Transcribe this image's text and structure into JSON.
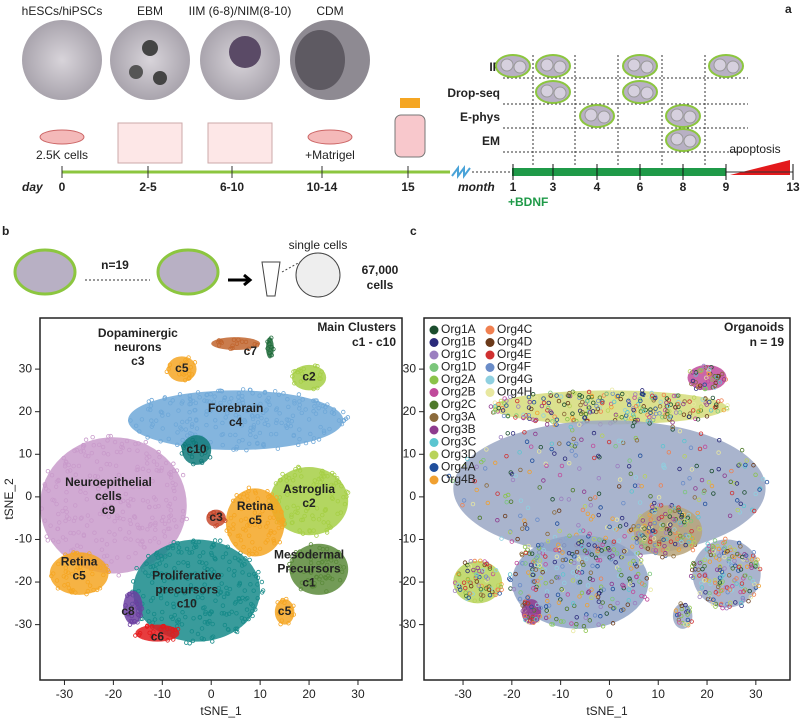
{
  "panel_a": {
    "label": "a",
    "stages": [
      {
        "name": "hESCs/hiPSCs",
        "note": "2.5K cells"
      },
      {
        "name": "EBM"
      },
      {
        "name": "IIM (6-8)/NIM(8-10)"
      },
      {
        "name": "CDM",
        "note": "+Matrigel"
      }
    ],
    "day_label": "day",
    "days": [
      "0",
      "2-5",
      "6-10",
      "10-14",
      "15"
    ],
    "month_label": "month",
    "months": [
      "1",
      "3",
      "4",
      "6",
      "8",
      "9",
      "13"
    ],
    "bdnf": "+BDNF",
    "apoptosis": "apoptosis",
    "assays": [
      {
        "name": "IF",
        "at": [
          0,
          1,
          3,
          5
        ]
      },
      {
        "name": "Drop-seq",
        "at": [
          1,
          3
        ]
      },
      {
        "name": "E-phys",
        "at": [
          2,
          4
        ]
      },
      {
        "name": "EM",
        "at": [
          4
        ]
      }
    ]
  },
  "panel_b": {
    "label": "b",
    "n": "n=19",
    "single_cells": "single cells",
    "cells": [
      "67,000",
      "cells"
    ]
  },
  "panel_c": {
    "label": "c"
  },
  "plots": [
    {
      "type": "scatter",
      "xlabel": "tSNE_1",
      "ylabel": "tSNE_2",
      "xlim": [
        -35,
        39
      ],
      "ylim": [
        -43,
        42
      ],
      "xticks": [
        -30,
        -20,
        -10,
        0,
        10,
        20,
        30
      ],
      "yticks": [
        -30,
        -20,
        -10,
        0,
        10,
        20,
        30
      ],
      "corner": [
        "Main Clusters",
        "c1 - c10"
      ],
      "blobs": [
        {
          "color": "#6fa8d8",
          "x": 5,
          "y": 18,
          "rx": 22,
          "ry": 7
        },
        {
          "color": "#c99bcb",
          "x": -20,
          "y": -2,
          "rx": 15,
          "ry": 16
        },
        {
          "color": "#168a89",
          "x": -3,
          "y": -22,
          "rx": 13,
          "ry": 12
        },
        {
          "color": "#a6cf45",
          "x": 20,
          "y": -1,
          "rx": 8,
          "ry": 8
        },
        {
          "color": "#f5a623",
          "x": 9,
          "y": -6,
          "rx": 6,
          "ry": 8
        },
        {
          "color": "#f5a623",
          "x": -27,
          "y": -18,
          "rx": 6,
          "ry": 5
        },
        {
          "color": "#5b8a3a",
          "x": 22,
          "y": -17,
          "rx": 6,
          "ry": 6
        },
        {
          "color": "#a6cf45",
          "x": 20,
          "y": 28,
          "rx": 3.5,
          "ry": 3
        },
        {
          "color": "#f5a623",
          "x": -6,
          "y": 30,
          "rx": 3,
          "ry": 3
        },
        {
          "color": "#1f6b3a",
          "x": 12,
          "y": 35,
          "rx": 0.8,
          "ry": 2.5
        },
        {
          "color": "#c1652e",
          "x": 5,
          "y": 36,
          "rx": 5,
          "ry": 1.5
        },
        {
          "color": "#117a7a",
          "x": -3,
          "y": 11,
          "rx": 3,
          "ry": 3.5
        },
        {
          "color": "#c84a2e",
          "x": 1,
          "y": -5,
          "rx": 2,
          "ry": 2
        },
        {
          "color": "#6b3fa0",
          "x": -16,
          "y": -26,
          "rx": 2,
          "ry": 4
        },
        {
          "color": "#e31a1c",
          "x": -11,
          "y": -32,
          "rx": 4.5,
          "ry": 2
        },
        {
          "color": "#f5a623",
          "x": 15,
          "y": -27,
          "rx": 2,
          "ry": 3
        }
      ],
      "labels": [
        {
          "lines": [
            "Dopaminergic",
            "neurons",
            "c3"
          ],
          "x": -15,
          "y": 35
        },
        {
          "lines": [
            "c7"
          ],
          "x": 8,
          "y": 34
        },
        {
          "lines": [
            "c5"
          ],
          "x": -6,
          "y": 30
        },
        {
          "lines": [
            "c2"
          ],
          "x": 20,
          "y": 28
        },
        {
          "lines": [
            "Forebrain",
            "c4"
          ],
          "x": 5,
          "y": 19
        },
        {
          "lines": [
            "c10"
          ],
          "x": -3,
          "y": 11
        },
        {
          "lines": [
            "Neuroepithelial",
            "cells",
            "c9"
          ],
          "x": -21,
          "y": 0
        },
        {
          "lines": [
            "Astroglia",
            "c2"
          ],
          "x": 20,
          "y": 0
        },
        {
          "lines": [
            "Retina",
            "c5"
          ],
          "x": 9,
          "y": -4
        },
        {
          "lines": [
            "c3"
          ],
          "x": 1,
          "y": -5
        },
        {
          "lines": [
            "Retina",
            "c5"
          ],
          "x": -27,
          "y": -17
        },
        {
          "lines": [
            "Mesodermal",
            "Precursors",
            "c1"
          ],
          "x": 20,
          "y": -17
        },
        {
          "lines": [
            "Proliferative",
            "precursors",
            "c10"
          ],
          "x": -5,
          "y": -22
        },
        {
          "lines": [
            "c8"
          ],
          "x": -17,
          "y": -27
        },
        {
          "lines": [
            "c6"
          ],
          "x": -11,
          "y": -33
        },
        {
          "lines": [
            "c5"
          ],
          "x": 15,
          "y": -27
        }
      ]
    },
    {
      "type": "scatter",
      "xlabel": "tSNE_1",
      "xlim": [
        -38,
        37
      ],
      "ylim": [
        -43,
        42
      ],
      "xticks": [
        -30,
        -20,
        -10,
        0,
        10,
        20,
        30
      ],
      "yticks": [
        -30,
        -20,
        -10,
        0,
        10,
        20,
        30
      ],
      "corner": [
        "Organoids",
        "n = 19"
      ],
      "blobs": [
        {
          "color": "#d5dc7a",
          "x": 0,
          "y": 21,
          "rx": 24,
          "ry": 4
        },
        {
          "color": "#9aa7c4",
          "x": 0,
          "y": 2,
          "rx": 32,
          "ry": 16
        },
        {
          "color": "#8fa3c7",
          "x": -6,
          "y": -20,
          "rx": 14,
          "ry": 11
        },
        {
          "color": "#b9a57a",
          "x": 12,
          "y": -8,
          "rx": 7,
          "ry": 6
        },
        {
          "color": "#9aa7c4",
          "x": 24,
          "y": -18,
          "rx": 7,
          "ry": 8
        },
        {
          "color": "#b8d35a",
          "x": -27,
          "y": -20,
          "rx": 5,
          "ry": 5
        },
        {
          "color": "#9aa7c4",
          "x": 15,
          "y": -28,
          "rx": 2,
          "ry": 3
        },
        {
          "color": "#8e3b8e",
          "x": -16,
          "y": -27,
          "rx": 2,
          "ry": 3
        },
        {
          "color": "#c04a9b",
          "x": 20,
          "y": 28,
          "rx": 4,
          "ry": 3
        }
      ],
      "legend": [
        {
          "name": "Org1A",
          "color": "#1b4d2e"
        },
        {
          "name": "Org1B",
          "color": "#2a2a7a"
        },
        {
          "name": "Org1C",
          "color": "#9b7fc0"
        },
        {
          "name": "Org1D",
          "color": "#7bc67b"
        },
        {
          "name": "Org2A",
          "color": "#8bc34a"
        },
        {
          "name": "Org2B",
          "color": "#c04a9b"
        },
        {
          "name": "Org2C",
          "color": "#4f7a2a"
        },
        {
          "name": "Org3A",
          "color": "#8b6a3b"
        },
        {
          "name": "Org3B",
          "color": "#8e3b8e"
        },
        {
          "name": "Org3C",
          "color": "#5bc5d0"
        },
        {
          "name": "Org3D",
          "color": "#b8d35a"
        },
        {
          "name": "Org4A",
          "color": "#1f4e9c"
        },
        {
          "name": "Org4B",
          "color": "#f0a030"
        },
        {
          "name": "Org4C",
          "color": "#f08050"
        },
        {
          "name": "Org4D",
          "color": "#6b3a1a"
        },
        {
          "name": "Org4E",
          "color": "#d03030"
        },
        {
          "name": "Org4F",
          "color": "#6a8cc8"
        },
        {
          "name": "Org4G",
          "color": "#8fd0e0"
        },
        {
          "name": "Org4H",
          "color": "#e8e8a0"
        }
      ]
    }
  ]
}
